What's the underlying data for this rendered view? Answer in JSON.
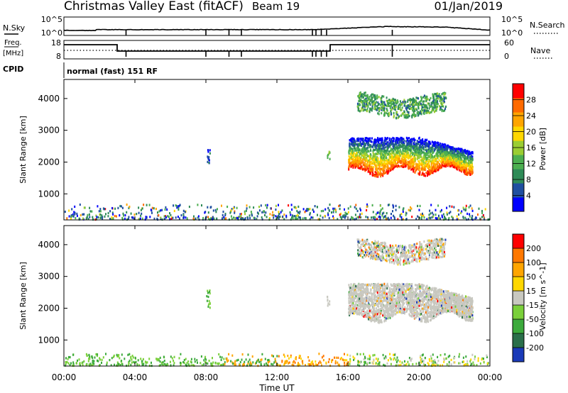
{
  "header": {
    "station": "Christmas Valley East (fitACF)",
    "beam": "Beam 19",
    "date": "01/Jan/2019"
  },
  "noise_panel": {
    "left_label": "N.Sky",
    "right_label": "N.Search",
    "left_ticks": [
      "10^5",
      "10^0"
    ],
    "right_ticks": [
      "10^5",
      "10^0"
    ]
  },
  "freq_panel": {
    "left_label": "Freq.",
    "left_unit": "[MHz]",
    "right_label": "Nave",
    "left_ticks": [
      "18",
      "8"
    ],
    "right_ticks": [
      "60",
      "0"
    ]
  },
  "cpid": {
    "label": "CPID",
    "value": "normal (fast) 151 RF"
  },
  "x_axis": {
    "label": "Time UT",
    "ticks": [
      "00:00",
      "04:00",
      "08:00",
      "12:00",
      "16:00",
      "20:00",
      "00:00"
    ]
  },
  "chart_data": [
    {
      "type": "heatmap",
      "panel": "power",
      "ylabel": "Slant Range [km]",
      "yticks": [
        "1000",
        "2000",
        "3000",
        "4000"
      ],
      "ylim": [
        180,
        4600
      ],
      "xlim": [
        "00:00",
        "24:00"
      ],
      "colorbar": {
        "label": "Power [dB]",
        "ticks": [
          "28",
          "24",
          "20",
          "16",
          "12",
          "8",
          "4"
        ],
        "range": [
          0,
          32
        ],
        "colors": [
          "#0000ff",
          "#1f4fa0",
          "#2e8b57",
          "#4caf50",
          "#9acd32",
          "#ffd700",
          "#ffa500",
          "#ff6a00",
          "#ff0000"
        ]
      },
      "features": [
        {
          "feature": "near range clutter",
          "x_range": [
            "00:00",
            "24:00"
          ],
          "y_range_km": [
            180,
            700
          ]
        },
        {
          "feature": "small echo patch",
          "x_range": [
            "08:00",
            "08:15"
          ],
          "y_range_km": [
            2000,
            2600
          ]
        },
        {
          "feature": "main scatter band",
          "x_range": [
            "16:00",
            "23:00"
          ],
          "y_range_km": [
            1600,
            2800
          ]
        },
        {
          "feature": "upper scatter band",
          "x_range": [
            "16:30",
            "21:30"
          ],
          "y_range_km": [
            3400,
            4300
          ]
        }
      ]
    },
    {
      "type": "heatmap",
      "panel": "velocity",
      "ylabel": "Slant Range [km]",
      "yticks": [
        "1000",
        "2000",
        "3000",
        "4000"
      ],
      "ylim": [
        180,
        4600
      ],
      "xlim": [
        "00:00",
        "24:00"
      ],
      "colorbar": {
        "label": "Velocity [m s^-1]",
        "ticks": [
          "200",
          "100",
          "50",
          "15",
          "-15",
          "-50",
          "-100",
          "-200"
        ],
        "colors": [
          "#1a3ab8",
          "#2a6f4a",
          "#3caa3c",
          "#7ad03a",
          "#c8c8c0",
          "#ffd700",
          "#ffa500",
          "#ff7800",
          "#ff0000"
        ]
      },
      "features": [
        {
          "feature": "near range ground scatter",
          "x_range": [
            "00:00",
            "24:00"
          ],
          "y_range_km": [
            180,
            600
          ]
        },
        {
          "feature": "main scatter band",
          "x_range": [
            "16:00",
            "23:00"
          ],
          "y_range_km": [
            1600,
            2800
          ]
        },
        {
          "feature": "upper scatter band",
          "x_range": [
            "16:30",
            "21:30"
          ],
          "y_range_km": [
            3400,
            4300
          ]
        }
      ]
    }
  ]
}
